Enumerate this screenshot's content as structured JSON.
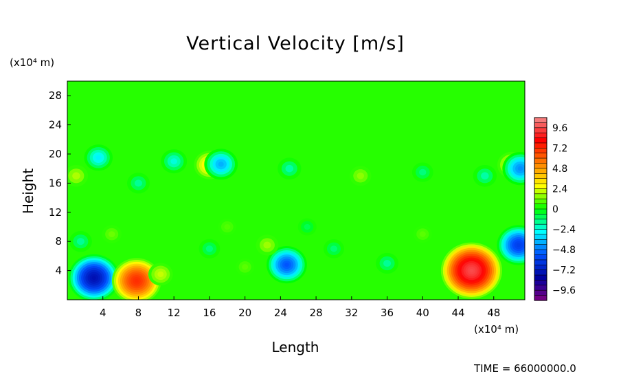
{
  "chart_data": {
    "type": "heatmap",
    "title": "Vertical Velocity [m/s]",
    "xlabel": "Length",
    "ylabel": "Height",
    "x_unit": "(x10⁴ m)",
    "y_unit": "(x10⁴ m)",
    "xlim": [
      0,
      51.5
    ],
    "ylim": [
      0,
      30
    ],
    "x_ticks": [
      "4",
      "8",
      "12",
      "16",
      "20",
      "24",
      "28",
      "32",
      "36",
      "40",
      "44",
      "48"
    ],
    "y_ticks": [
      "4",
      "8",
      "12",
      "16",
      "20",
      "24",
      "28"
    ],
    "colorbar": {
      "min": -10.8,
      "max": 10.8,
      "labels": [
        "9.6",
        "7.2",
        "4.8",
        "2.4",
        "0",
        "−2.4",
        "−4.8",
        "−7.2",
        "−9.6"
      ],
      "colors": [
        "#f58a8a",
        "#ff0000",
        "#ff8000",
        "#ffff00",
        "#00ff00",
        "#00ffff",
        "#0050ff",
        "#0000a0",
        "#800080"
      ]
    },
    "background_value": 0.4,
    "features": [
      {
        "x": 3.0,
        "y": 3.0,
        "value": -7.6
      },
      {
        "x": 7.8,
        "y": 2.6,
        "value": 7.2
      },
      {
        "x": 10.5,
        "y": 3.5,
        "value": 2.2
      },
      {
        "x": 24.7,
        "y": 4.8,
        "value": -5.4
      },
      {
        "x": 22.5,
        "y": 7.5,
        "value": 1.8
      },
      {
        "x": 45.5,
        "y": 4.0,
        "value": 9.6
      },
      {
        "x": 50.8,
        "y": 7.5,
        "value": -6.0
      },
      {
        "x": 20.0,
        "y": 4.5,
        "value": 1.0
      },
      {
        "x": 1.5,
        "y": 8.0,
        "value": -1.8
      },
      {
        "x": 16.0,
        "y": 7.0,
        "value": -1.5
      },
      {
        "x": 5.0,
        "y": 9.0,
        "value": 1.2
      },
      {
        "x": 30.0,
        "y": 7.0,
        "value": -1.4
      },
      {
        "x": 36.0,
        "y": 5.0,
        "value": -1.8
      },
      {
        "x": 40.0,
        "y": 9.0,
        "value": 1.0
      },
      {
        "x": 18.0,
        "y": 10.0,
        "value": 0.9
      },
      {
        "x": 27.0,
        "y": 10.0,
        "value": -1.0
      },
      {
        "x": 1.0,
        "y": 17.0,
        "value": 2.0
      },
      {
        "x": 8.0,
        "y": 16.0,
        "value": -1.8
      },
      {
        "x": 16.0,
        "y": 18.5,
        "value": 3.5
      },
      {
        "x": 17.3,
        "y": 18.6,
        "value": -4.0
      },
      {
        "x": 25.0,
        "y": 18.0,
        "value": -2.0
      },
      {
        "x": 33.0,
        "y": 17.0,
        "value": 1.6
      },
      {
        "x": 40.0,
        "y": 17.5,
        "value": -1.5
      },
      {
        "x": 47.0,
        "y": 17.0,
        "value": -2.0
      },
      {
        "x": 50.0,
        "y": 18.5,
        "value": 3.0
      },
      {
        "x": 51.0,
        "y": 18.0,
        "value": -4.5
      },
      {
        "x": 12.0,
        "y": 19.0,
        "value": -2.5
      },
      {
        "x": 3.5,
        "y": 19.5,
        "value": -3.0
      }
    ],
    "time_label": "TIME = 66000000.0"
  }
}
